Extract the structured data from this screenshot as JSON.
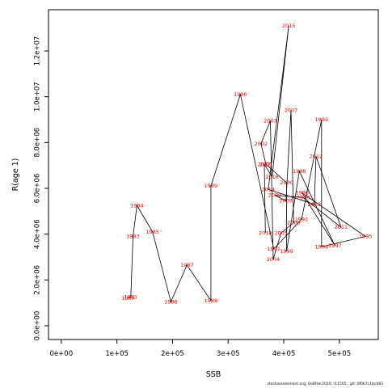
{
  "chart_data": {
    "type": "scatter",
    "xlabel": "SSB",
    "ylabel": "R(age 1)",
    "xlim": [
      -23000,
      570000
    ],
    "ylim": [
      -600000,
      13800000
    ],
    "x_ticks": [
      0,
      100000,
      200000,
      300000,
      400000,
      500000
    ],
    "x_tick_labels": [
      "0e+00",
      "1e+05",
      "2e+05",
      "3e+05",
      "4e+05",
      "5e+05"
    ],
    "y_ticks": [
      0,
      2000000,
      4000000,
      6000000,
      8000000,
      10000000,
      12000000
    ],
    "y_tick_labels": [
      "0.0e+00",
      "2.0e+06",
      "4.0e+06",
      "6.0e+06",
      "8.0e+06",
      "1.0e+07",
      "1.2e+07"
    ],
    "label_color": "#ff0000",
    "line_color": "#000000",
    "grid": false,
    "points": [
      {
        "year": "1980",
        "x": 120000,
        "y": 1200000
      },
      {
        "year": "1981",
        "x": 125000,
        "y": 1250000
      },
      {
        "year": "1983",
        "x": 129000,
        "y": 3900000
      },
      {
        "year": "1984",
        "x": 136000,
        "y": 5250000
      },
      {
        "year": "1985",
        "x": 164000,
        "y": 4100000
      },
      {
        "year": "1986",
        "x": 197000,
        "y": 1050000
      },
      {
        "year": "1987",
        "x": 226000,
        "y": 2650000
      },
      {
        "year": "1988",
        "x": 269000,
        "y": 1100000
      },
      {
        "year": "1989",
        "x": 269000,
        "y": 6100000
      },
      {
        "year": "1990",
        "x": 322000,
        "y": 10100000
      },
      {
        "year": "1991",
        "x": 382000,
        "y": 3350000
      },
      {
        "year": "1992",
        "x": 432000,
        "y": 4650000
      },
      {
        "year": "1993",
        "x": 468000,
        "y": 9000000
      },
      {
        "year": "1994",
        "x": 468000,
        "y": 3450000
      },
      {
        "year": "1995",
        "x": 547000,
        "y": 3900000
      },
      {
        "year": "1996",
        "x": 433000,
        "y": 5800000
      },
      {
        "year": "1997",
        "x": 492000,
        "y": 3500000
      },
      {
        "year": "1998",
        "x": 428000,
        "y": 6750000
      },
      {
        "year": "1999",
        "x": 405000,
        "y": 3250000
      },
      {
        "year": "2000",
        "x": 405000,
        "y": 6250000
      },
      {
        "year": "2001",
        "x": 368000,
        "y": 7050000
      },
      {
        "year": "2002",
        "x": 359000,
        "y": 7950000
      },
      {
        "year": "2003",
        "x": 376000,
        "y": 8950000
      },
      {
        "year": "2004",
        "x": 381000,
        "y": 2900000
      },
      {
        "year": "2005",
        "x": 395000,
        "y": 4050000
      },
      {
        "year": "2006",
        "x": 418000,
        "y": 4500000
      },
      {
        "year": "2007",
        "x": 413000,
        "y": 9400000
      },
      {
        "year": "2008",
        "x": 404000,
        "y": 5450000
      },
      {
        "year": "2009",
        "x": 384000,
        "y": 5700000
      },
      {
        "year": "2010",
        "x": 435000,
        "y": 5600000
      },
      {
        "year": "2011",
        "x": 503000,
        "y": 4300000
      },
      {
        "year": "2012",
        "x": 458000,
        "y": 7400000
      },
      {
        "year": "2013",
        "x": 455000,
        "y": 5300000
      },
      {
        "year": "2014",
        "x": 372000,
        "y": 5950000
      },
      {
        "year": "2015",
        "x": 409000,
        "y": 13100000
      },
      {
        "year": "2016",
        "x": 379000,
        "y": 6500000
      },
      {
        "year": "2017",
        "x": 365000,
        "y": 7050000
      },
      {
        "year": "2018",
        "x": 367000,
        "y": 4050000
      }
    ]
  },
  "footer": "stockassessment.org, GoBHer2020, r11505 , git: df0b7c1bcb83"
}
